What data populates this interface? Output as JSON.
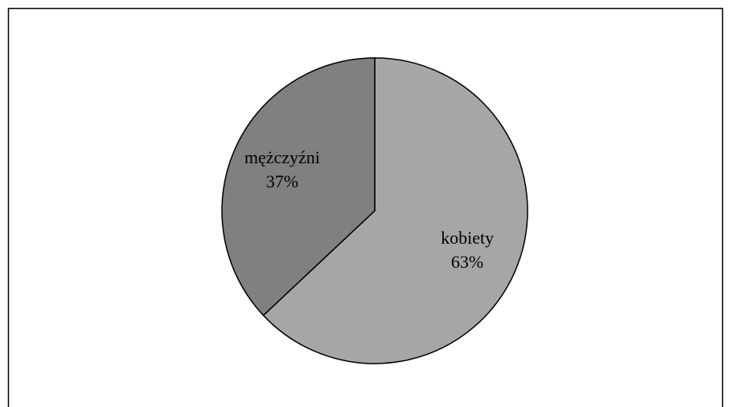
{
  "chart_data": {
    "type": "pie",
    "categories": [
      "kobiety",
      "mężczyźni"
    ],
    "values": [
      63,
      37
    ],
    "value_labels": [
      "63%",
      "37%"
    ],
    "colors": [
      "#a6a6a6",
      "#808080"
    ]
  }
}
